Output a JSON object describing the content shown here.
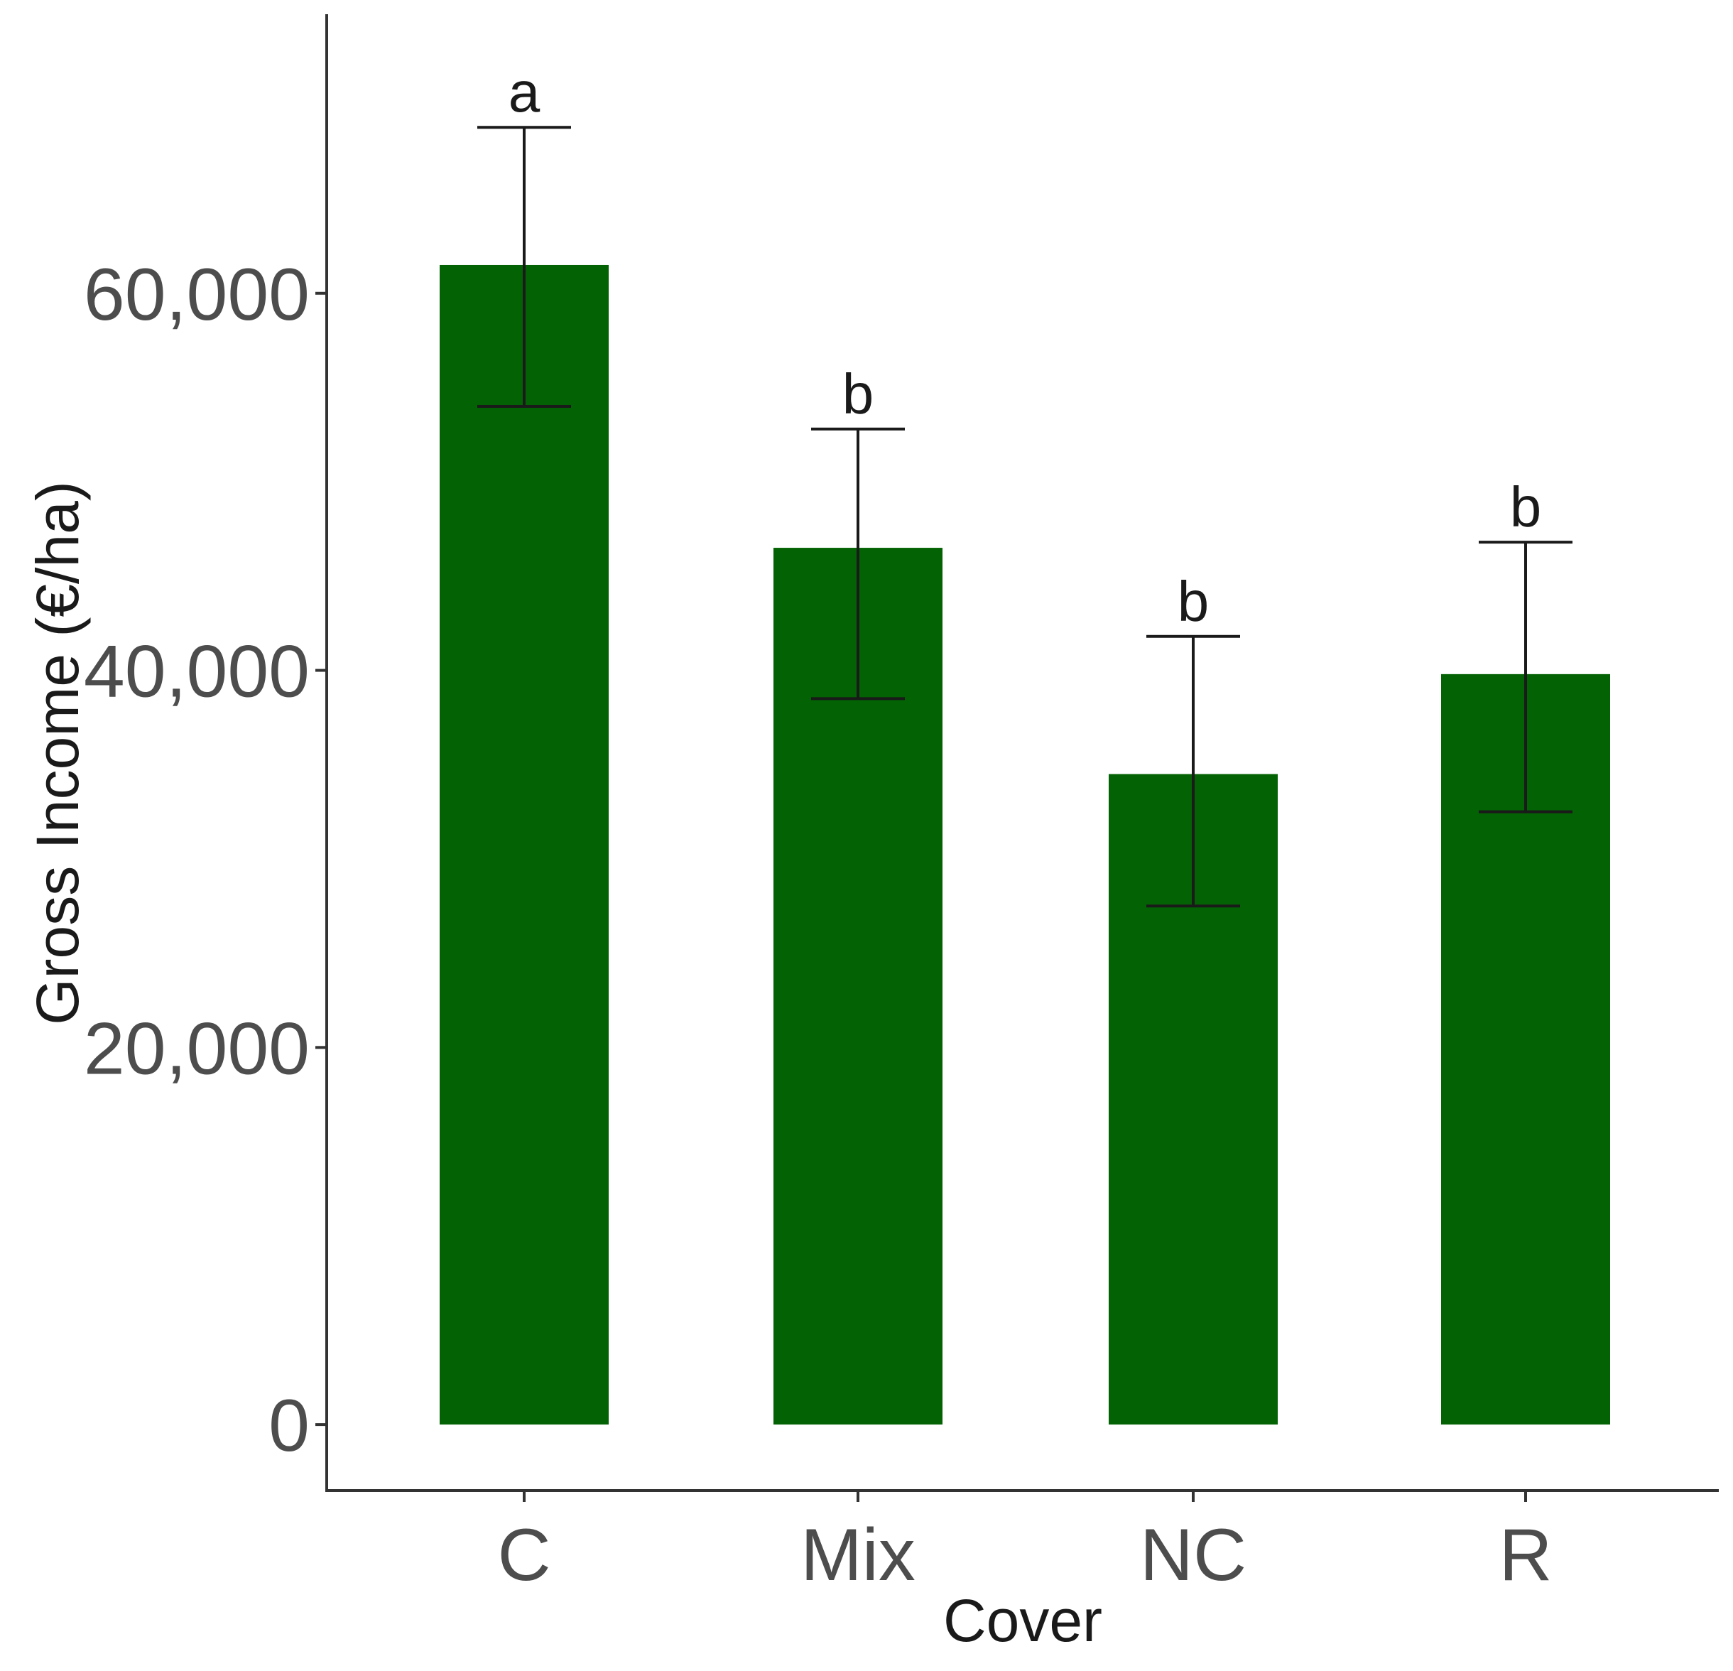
{
  "chart_data": {
    "type": "bar",
    "categories": [
      "C",
      "Mix",
      "NC",
      "R"
    ],
    "values": [
      61500,
      46500,
      34500,
      39800
    ],
    "error_low": [
      54000,
      38500,
      27500,
      32500
    ],
    "error_high": [
      68800,
      52800,
      41800,
      46800
    ],
    "significance_labels": [
      "a",
      "b",
      "b",
      "b"
    ],
    "xlabel": "Cover",
    "ylabel": "Gross Income (€/ha)",
    "ylim": [
      -3500,
      74800
    ],
    "yticks": [
      0,
      20000,
      40000,
      60000
    ],
    "ytick_labels": [
      "0",
      "20,000",
      "40,000",
      "60,000"
    ],
    "grid": false,
    "bar_color": "#036203"
  }
}
